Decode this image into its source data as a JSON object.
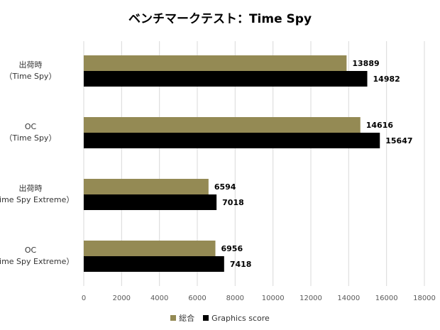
{
  "chart_data": {
    "type": "bar",
    "orientation": "horizontal",
    "title": "ベンチマークテスト：Time Spy",
    "categories": [
      {
        "line1": "出荷時",
        "line2": "（Time Spy）"
      },
      {
        "line1": "OC",
        "line2": "（Time Spy）"
      },
      {
        "line1": "出荷時",
        "line2": "（Time Spy Extreme）"
      },
      {
        "line1": "OC",
        "line2": "（Time Spy Extreme）"
      }
    ],
    "series": [
      {
        "name": "総合",
        "color": "#948A54",
        "values": [
          13889,
          14616,
          6594,
          6956
        ]
      },
      {
        "name": "Graphics score",
        "color": "#000000",
        "values": [
          14982,
          15647,
          7018,
          7418
        ]
      }
    ],
    "xlim": [
      0,
      18000
    ],
    "xticks": [
      0,
      2000,
      4000,
      6000,
      8000,
      10000,
      12000,
      14000,
      16000,
      18000
    ],
    "grid": true,
    "data_labels": true,
    "legend_position": "bottom"
  }
}
